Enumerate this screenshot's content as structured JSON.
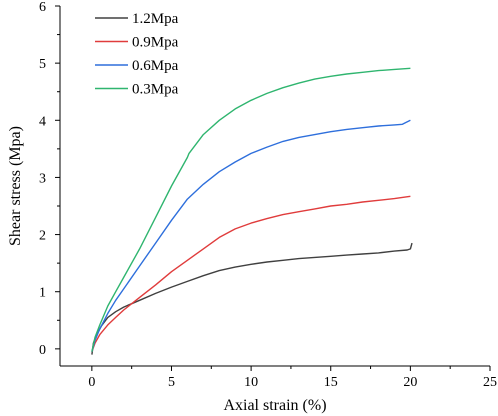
{
  "chart_data": {
    "type": "line",
    "xlabel": "Axial strain (%)",
    "ylabel": "Shear stress (Mpa)",
    "xlim": [
      -2,
      25
    ],
    "ylim": [
      -0.3,
      6
    ],
    "xticks": [
      0,
      5,
      10,
      15,
      20,
      25
    ],
    "yticks": [
      0,
      1,
      2,
      3,
      4,
      5,
      6
    ],
    "grid": false,
    "legend_position": "top-left",
    "series": [
      {
        "name": "1.2Mpa",
        "color": "#404040",
        "points": [
          [
            0,
            -0.1
          ],
          [
            0.1,
            0.1
          ],
          [
            0.3,
            0.25
          ],
          [
            0.6,
            0.4
          ],
          [
            1,
            0.55
          ],
          [
            1.5,
            0.65
          ],
          [
            2,
            0.73
          ],
          [
            3,
            0.85
          ],
          [
            4,
            0.97
          ],
          [
            5,
            1.08
          ],
          [
            6,
            1.18
          ],
          [
            7,
            1.28
          ],
          [
            8,
            1.37
          ],
          [
            9,
            1.43
          ],
          [
            10,
            1.48
          ],
          [
            11,
            1.52
          ],
          [
            12,
            1.55
          ],
          [
            13,
            1.58
          ],
          [
            14,
            1.6
          ],
          [
            15,
            1.62
          ],
          [
            16,
            1.64
          ],
          [
            17,
            1.66
          ],
          [
            18,
            1.68
          ],
          [
            19,
            1.71
          ],
          [
            19.8,
            1.73
          ],
          [
            20,
            1.75
          ],
          [
            20.1,
            1.85
          ]
        ]
      },
      {
        "name": "0.9Mpa",
        "color": "#e03c3c",
        "points": [
          [
            0,
            -0.05
          ],
          [
            0.2,
            0.1
          ],
          [
            0.5,
            0.25
          ],
          [
            1,
            0.42
          ],
          [
            1.5,
            0.55
          ],
          [
            2,
            0.68
          ],
          [
            3,
            0.9
          ],
          [
            4,
            1.12
          ],
          [
            5,
            1.35
          ],
          [
            6,
            1.55
          ],
          [
            7,
            1.75
          ],
          [
            8,
            1.95
          ],
          [
            9,
            2.1
          ],
          [
            10,
            2.2
          ],
          [
            11,
            2.28
          ],
          [
            12,
            2.35
          ],
          [
            13,
            2.4
          ],
          [
            14,
            2.45
          ],
          [
            15,
            2.5
          ],
          [
            16,
            2.53
          ],
          [
            17,
            2.57
          ],
          [
            18,
            2.6
          ],
          [
            19,
            2.63
          ],
          [
            20,
            2.67
          ]
        ]
      },
      {
        "name": "0.6Mpa",
        "color": "#2e6fdc",
        "points": [
          [
            0,
            -0.05
          ],
          [
            0.2,
            0.15
          ],
          [
            0.5,
            0.35
          ],
          [
            1,
            0.62
          ],
          [
            1.5,
            0.85
          ],
          [
            2,
            1.05
          ],
          [
            3,
            1.45
          ],
          [
            4,
            1.85
          ],
          [
            5,
            2.25
          ],
          [
            6,
            2.62
          ],
          [
            7,
            2.88
          ],
          [
            8,
            3.1
          ],
          [
            9,
            3.27
          ],
          [
            10,
            3.42
          ],
          [
            11,
            3.53
          ],
          [
            12,
            3.63
          ],
          [
            13,
            3.7
          ],
          [
            14,
            3.75
          ],
          [
            15,
            3.8
          ],
          [
            16,
            3.84
          ],
          [
            17,
            3.87
          ],
          [
            18,
            3.9
          ],
          [
            19,
            3.92
          ],
          [
            19.5,
            3.93
          ],
          [
            19.7,
            3.96
          ],
          [
            20,
            4.0
          ]
        ]
      },
      {
        "name": "0.3Mpa",
        "color": "#2fb56f",
        "points": [
          [
            0,
            -0.05
          ],
          [
            0.2,
            0.2
          ],
          [
            0.5,
            0.42
          ],
          [
            1,
            0.75
          ],
          [
            1.5,
            1.0
          ],
          [
            2,
            1.25
          ],
          [
            3,
            1.75
          ],
          [
            4,
            2.3
          ],
          [
            5,
            2.85
          ],
          [
            6,
            3.35
          ],
          [
            6.1,
            3.42
          ],
          [
            7,
            3.75
          ],
          [
            8,
            4.0
          ],
          [
            9,
            4.2
          ],
          [
            10,
            4.35
          ],
          [
            11,
            4.47
          ],
          [
            12,
            4.57
          ],
          [
            13,
            4.65
          ],
          [
            14,
            4.72
          ],
          [
            15,
            4.77
          ],
          [
            16,
            4.81
          ],
          [
            17,
            4.84
          ],
          [
            18,
            4.87
          ],
          [
            19,
            4.89
          ],
          [
            20,
            4.91
          ]
        ]
      }
    ]
  }
}
